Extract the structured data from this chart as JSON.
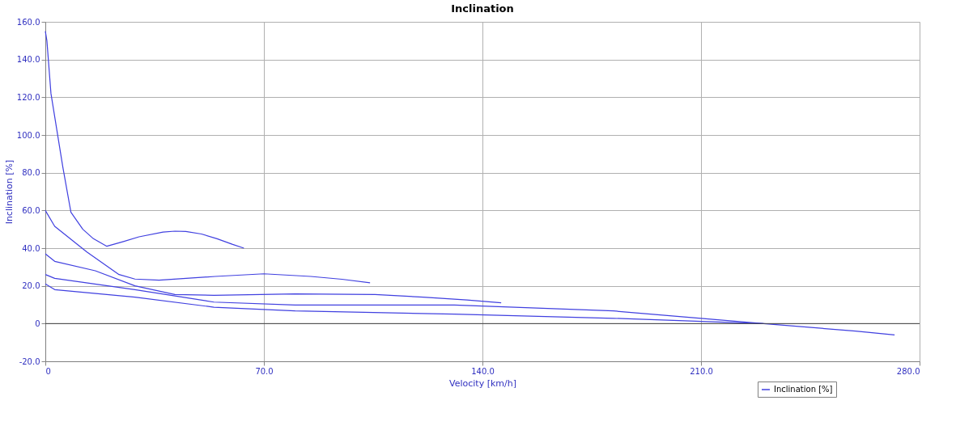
{
  "chart_data": {
    "type": "line",
    "title": "Inclination",
    "xlabel": "Velocity [km/h]",
    "ylabel": "Inclination [%]",
    "xlim": [
      0,
      280
    ],
    "ylim": [
      -20,
      160
    ],
    "xticks": [
      0,
      {
        "value": 70,
        "label": "70.0"
      },
      {
        "value": 140,
        "label": "140.0"
      },
      {
        "value": 210,
        "label": "210.0"
      },
      {
        "value": 280,
        "label": "280.0"
      }
    ],
    "yticks": [
      {
        "value": -20,
        "label": "-20.0"
      },
      0,
      {
        "value": 20,
        "label": "20.0"
      },
      {
        "value": 40,
        "label": "40.0"
      },
      {
        "value": 60,
        "label": "60.0"
      },
      {
        "value": 80,
        "label": "80.0"
      },
      {
        "value": 100,
        "label": "100.0"
      },
      {
        "value": 120,
        "label": "120.0"
      },
      {
        "value": 140,
        "label": "140.0"
      },
      {
        "value": 160,
        "label": "160.0"
      }
    ],
    "grid": true,
    "legend": "bottom right",
    "marker": "none",
    "line_style": "solid",
    "ref_lines": [
      {
        "axis": "y",
        "value": 0,
        "color": "#404040"
      }
    ],
    "series": [
      {
        "name": "Inclination [%]",
        "color": "#4040e0",
        "x": [
          0,
          0.5,
          1.8,
          5.6,
          8.2,
          12,
          15.4,
          19.7,
          25,
          30,
          37.7,
          41.5,
          45,
          50,
          55,
          60,
          63.6
        ],
        "values": [
          155,
          150,
          122,
          83,
          59,
          50,
          45,
          41,
          43.5,
          46,
          48.5,
          49,
          48.8,
          47.5,
          45,
          42,
          40
        ]
      },
      {
        "color": "#4040e0",
        "x": [
          0,
          3,
          13.3,
          23.6,
          28.7,
          36.4,
          54.4,
          70,
          85,
          95,
          104
        ],
        "values": [
          60,
          51.6,
          38,
          26,
          23.6,
          23,
          25,
          26.4,
          25,
          23.5,
          21.6
        ]
      },
      {
        "color": "#4040e0",
        "x": [
          0,
          3,
          16,
          28.7,
          41.5,
          54,
          80,
          105.6,
          121,
          135,
          146
        ],
        "values": [
          37,
          33,
          28,
          20,
          15.4,
          15,
          15.7,
          15.4,
          14,
          12.5,
          11
        ]
      },
      {
        "color": "#4040e0",
        "x": [
          0,
          3,
          28.7,
          54,
          80,
          131,
          182,
          210,
          230
        ],
        "values": [
          26,
          24,
          18,
          11.4,
          9.8,
          9.8,
          6.7,
          2.8,
          0
        ]
      },
      {
        "color": "#4040e0",
        "x": [
          0,
          3,
          28.7,
          54,
          80,
          131,
          182,
          230,
          259.5,
          272
        ],
        "values": [
          21,
          18,
          14,
          8.7,
          6.7,
          5,
          2.8,
          0,
          -4,
          -6
        ]
      }
    ]
  }
}
